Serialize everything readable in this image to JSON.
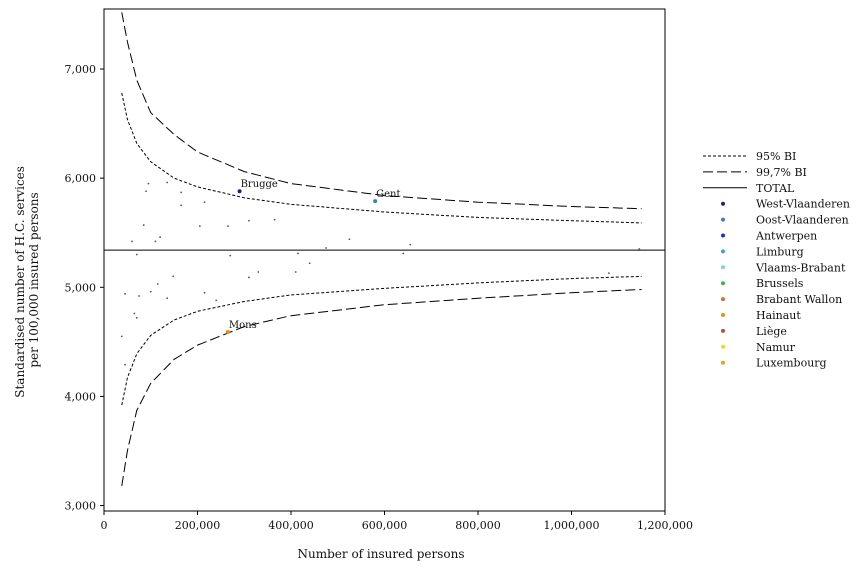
{
  "chart_data": {
    "type": "scatter",
    "title": "",
    "xlabel": "Number of insured persons",
    "ylabel_lines": [
      "Standardised number of H.C. services",
      "per 100,000 insured persons"
    ],
    "xlim": [
      0,
      1200000
    ],
    "ylim": [
      2950,
      7550
    ],
    "x_ticks": [
      0,
      200000,
      400000,
      600000,
      800000,
      1000000,
      1200000
    ],
    "x_tick_labels": [
      "0",
      "200,000",
      "400,000",
      "600,000",
      "800,000",
      "1,000,000",
      "1,200,000"
    ],
    "y_ticks": [
      3000,
      4000,
      5000,
      6000,
      7000
    ],
    "y_tick_labels": [
      "3,000",
      "4,000",
      "5,000",
      "6,000",
      "7,000"
    ],
    "grid": false,
    "legend_position": "right",
    "total": 5340,
    "colors": {
      "West-Vlaanderen": "#1f1f8a",
      "Oost-Vlaanderen": "#3f78d4",
      "Antwerpen": "#1f2fd8",
      "Limburg": "#3aa0e0",
      "Vlaams-Brabant": "#7fd0e0",
      "Brussels": "#3cb54a",
      "Brabant Wallon": "#d86a3a",
      "Hainaut": "#f08a18",
      "Liège": "#b0504a",
      "Namur": "#f2d81c",
      "Luxembourg": "#e6a030",
      "default": "#555555"
    },
    "legend": [
      {
        "label": "95% BI",
        "style": "dotted"
      },
      {
        "label": "99,7% BI",
        "style": "dashed"
      },
      {
        "label": "TOTAL",
        "style": "solid"
      },
      {
        "label": "West-Vlaanderen",
        "style": "dot"
      },
      {
        "label": "Oost-Vlaanderen",
        "style": "dot"
      },
      {
        "label": "Antwerpen",
        "style": "dot"
      },
      {
        "label": "Limburg",
        "style": "dot"
      },
      {
        "label": "Vlaams-Brabant",
        "style": "dot"
      },
      {
        "label": "Brussels",
        "style": "dot"
      },
      {
        "label": "Brabant Wallon",
        "style": "dot"
      },
      {
        "label": "Hainaut",
        "style": "dot"
      },
      {
        "label": "Liège",
        "style": "dot"
      },
      {
        "label": "Namur",
        "style": "dot"
      },
      {
        "label": "Luxembourg",
        "style": "dot"
      }
    ],
    "bands": {
      "ci95_upper": [
        [
          38000,
          6780
        ],
        [
          50000,
          6540
        ],
        [
          70000,
          6320
        ],
        [
          100000,
          6150
        ],
        [
          150000,
          6000
        ],
        [
          200000,
          5920
        ],
        [
          300000,
          5820
        ],
        [
          400000,
          5760
        ],
        [
          600000,
          5690
        ],
        [
          800000,
          5640
        ],
        [
          1000000,
          5610
        ],
        [
          1150000,
          5590
        ]
      ],
      "ci95_lower": [
        [
          38000,
          3920
        ],
        [
          50000,
          4170
        ],
        [
          70000,
          4390
        ],
        [
          100000,
          4560
        ],
        [
          150000,
          4700
        ],
        [
          200000,
          4780
        ],
        [
          300000,
          4870
        ],
        [
          400000,
          4930
        ],
        [
          600000,
          4990
        ],
        [
          800000,
          5040
        ],
        [
          1000000,
          5080
        ],
        [
          1150000,
          5100
        ]
      ],
      "ci997_upper": [
        [
          38000,
          7520
        ],
        [
          50000,
          7250
        ],
        [
          70000,
          6900
        ],
        [
          100000,
          6600
        ],
        [
          150000,
          6400
        ],
        [
          200000,
          6240
        ],
        [
          300000,
          6060
        ],
        [
          400000,
          5950
        ],
        [
          600000,
          5840
        ],
        [
          800000,
          5780
        ],
        [
          1000000,
          5740
        ],
        [
          1150000,
          5720
        ]
      ],
      "ci997_lower": [
        [
          38000,
          3180
        ],
        [
          50000,
          3500
        ],
        [
          70000,
          3870
        ],
        [
          100000,
          4120
        ],
        [
          150000,
          4340
        ],
        [
          200000,
          4470
        ],
        [
          300000,
          4640
        ],
        [
          400000,
          4740
        ],
        [
          600000,
          4840
        ],
        [
          800000,
          4900
        ],
        [
          1000000,
          4950
        ],
        [
          1150000,
          4980
        ]
      ]
    },
    "points": [
      {
        "x": 290000,
        "y": 5880,
        "province": "West-Vlaanderen",
        "label": "Brugge"
      },
      {
        "x": 580000,
        "y": 5790,
        "province": "Oost-Vlaanderen",
        "label": "Gent"
      },
      {
        "x": 265000,
        "y": 4590,
        "province": "Hainaut",
        "label": "Mons"
      },
      {
        "x": 95000,
        "y": 5950
      },
      {
        "x": 135000,
        "y": 5960
      },
      {
        "x": 90000,
        "y": 5880
      },
      {
        "x": 165000,
        "y": 5870
      },
      {
        "x": 165000,
        "y": 5750
      },
      {
        "x": 215000,
        "y": 5780
      },
      {
        "x": 85000,
        "y": 5570
      },
      {
        "x": 110000,
        "y": 5420
      },
      {
        "x": 120000,
        "y": 5460
      },
      {
        "x": 60000,
        "y": 5420
      },
      {
        "x": 205000,
        "y": 5560
      },
      {
        "x": 265000,
        "y": 5560
      },
      {
        "x": 310000,
        "y": 5610
      },
      {
        "x": 365000,
        "y": 5620
      },
      {
        "x": 475000,
        "y": 5360
      },
      {
        "x": 525000,
        "y": 5440
      },
      {
        "x": 655000,
        "y": 5390
      },
      {
        "x": 70000,
        "y": 5300
      },
      {
        "x": 270000,
        "y": 5290
      },
      {
        "x": 415000,
        "y": 5310
      },
      {
        "x": 640000,
        "y": 5310
      },
      {
        "x": 1145000,
        "y": 5350
      },
      {
        "x": 440000,
        "y": 5220
      },
      {
        "x": 148000,
        "y": 5100
      },
      {
        "x": 310000,
        "y": 5090
      },
      {
        "x": 330000,
        "y": 5140
      },
      {
        "x": 410000,
        "y": 5140
      },
      {
        "x": 1080000,
        "y": 5130
      },
      {
        "x": 115000,
        "y": 5030
      },
      {
        "x": 100000,
        "y": 4960
      },
      {
        "x": 45000,
        "y": 4940
      },
      {
        "x": 75000,
        "y": 4920
      },
      {
        "x": 135000,
        "y": 4900
      },
      {
        "x": 215000,
        "y": 4950
      },
      {
        "x": 240000,
        "y": 4880
      },
      {
        "x": 65000,
        "y": 4760
      },
      {
        "x": 70000,
        "y": 4720
      },
      {
        "x": 38000,
        "y": 4550
      },
      {
        "x": 45000,
        "y": 4290
      }
    ]
  }
}
